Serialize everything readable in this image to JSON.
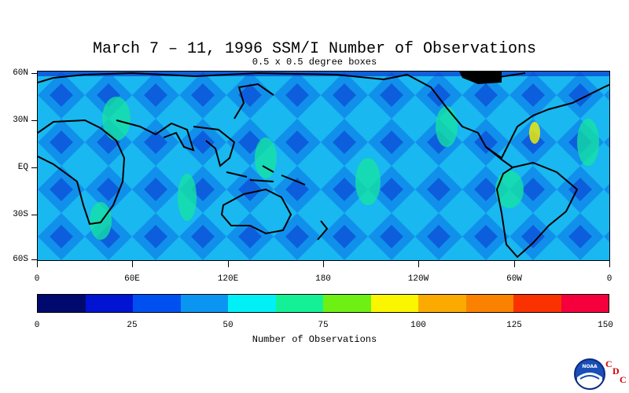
{
  "header": {
    "title": "March 7 – 11, 1996 SSM/I Number of Observations",
    "subtitle": "0.5 x 0.5 degree boxes"
  },
  "map": {
    "lat_labels": [
      "60N",
      "30N",
      "EQ",
      "30S",
      "60S"
    ],
    "lon_labels": [
      "0",
      "60E",
      "120E",
      "180",
      "120W",
      "60W",
      "0"
    ]
  },
  "colorbar": {
    "title": "Number of Observations",
    "tick_labels": [
      "0",
      "25",
      "50",
      "75",
      "100",
      "125",
      "150"
    ],
    "colors": [
      "#000a6e",
      "#0014d2",
      "#0050f0",
      "#0a96f0",
      "#00f0f5",
      "#14f096",
      "#6ef014",
      "#faf500",
      "#faaa00",
      "#fa8200",
      "#fa3200",
      "#f5003c"
    ]
  },
  "logo": {
    "noaa_text": "NOAA",
    "cdc_letters": [
      "C",
      "D",
      "C"
    ]
  }
}
